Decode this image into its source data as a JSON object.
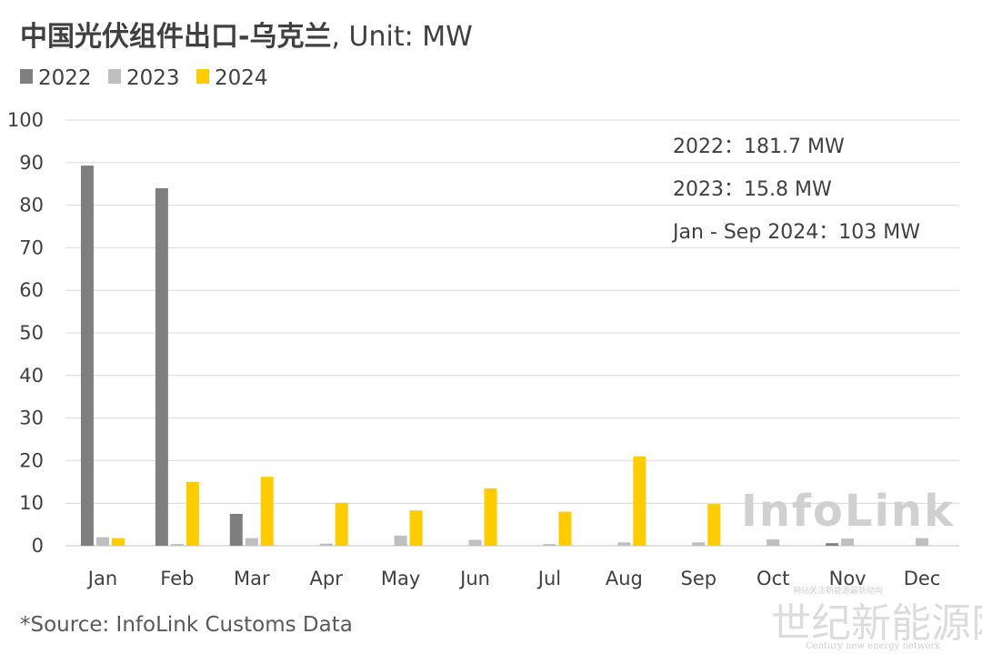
{
  "chart_data": {
    "type": "bar",
    "title": "中国光伏组件出口-乌克兰",
    "title_unit": ", Unit: MW",
    "categories": [
      "Jan",
      "Feb",
      "Mar",
      "Apr",
      "May",
      "Jun",
      "Jul",
      "Aug",
      "Sep",
      "Oct",
      "Nov",
      "Dec"
    ],
    "series": [
      {
        "name": "2022",
        "color": "#7f7f7f",
        "values": [
          89.3,
          84.0,
          7.5,
          0,
          0,
          0,
          0,
          0,
          0,
          0,
          0.6,
          0
        ]
      },
      {
        "name": "2023",
        "color": "#bfbfbf",
        "values": [
          2.0,
          0.4,
          1.8,
          0.5,
          2.4,
          1.4,
          0.4,
          0.8,
          0.8,
          1.5,
          1.7,
          1.8
        ]
      },
      {
        "name": "2024",
        "color": "#ffcc00",
        "values": [
          1.8,
          15.0,
          16.2,
          10.1,
          8.3,
          13.5,
          8.0,
          21.0,
          9.8,
          null,
          null,
          null
        ]
      }
    ],
    "ylim": [
      0,
      100
    ],
    "yticks": [
      0,
      10,
      20,
      30,
      40,
      50,
      60,
      70,
      80,
      90,
      100
    ],
    "grid": true,
    "legend_position": "top-left",
    "annotations": [
      "2022：181.7 MW",
      "2023：15.8 MW",
      "Jan - Sep 2024：103 MW"
    ],
    "source": "*Source: InfoLink Customs Data"
  },
  "watermark": "InfoLink",
  "site_watermark": {
    "name": "世纪新能源网",
    "english": "Century new energy network",
    "tagline": "网站关注新能源最新动向"
  }
}
